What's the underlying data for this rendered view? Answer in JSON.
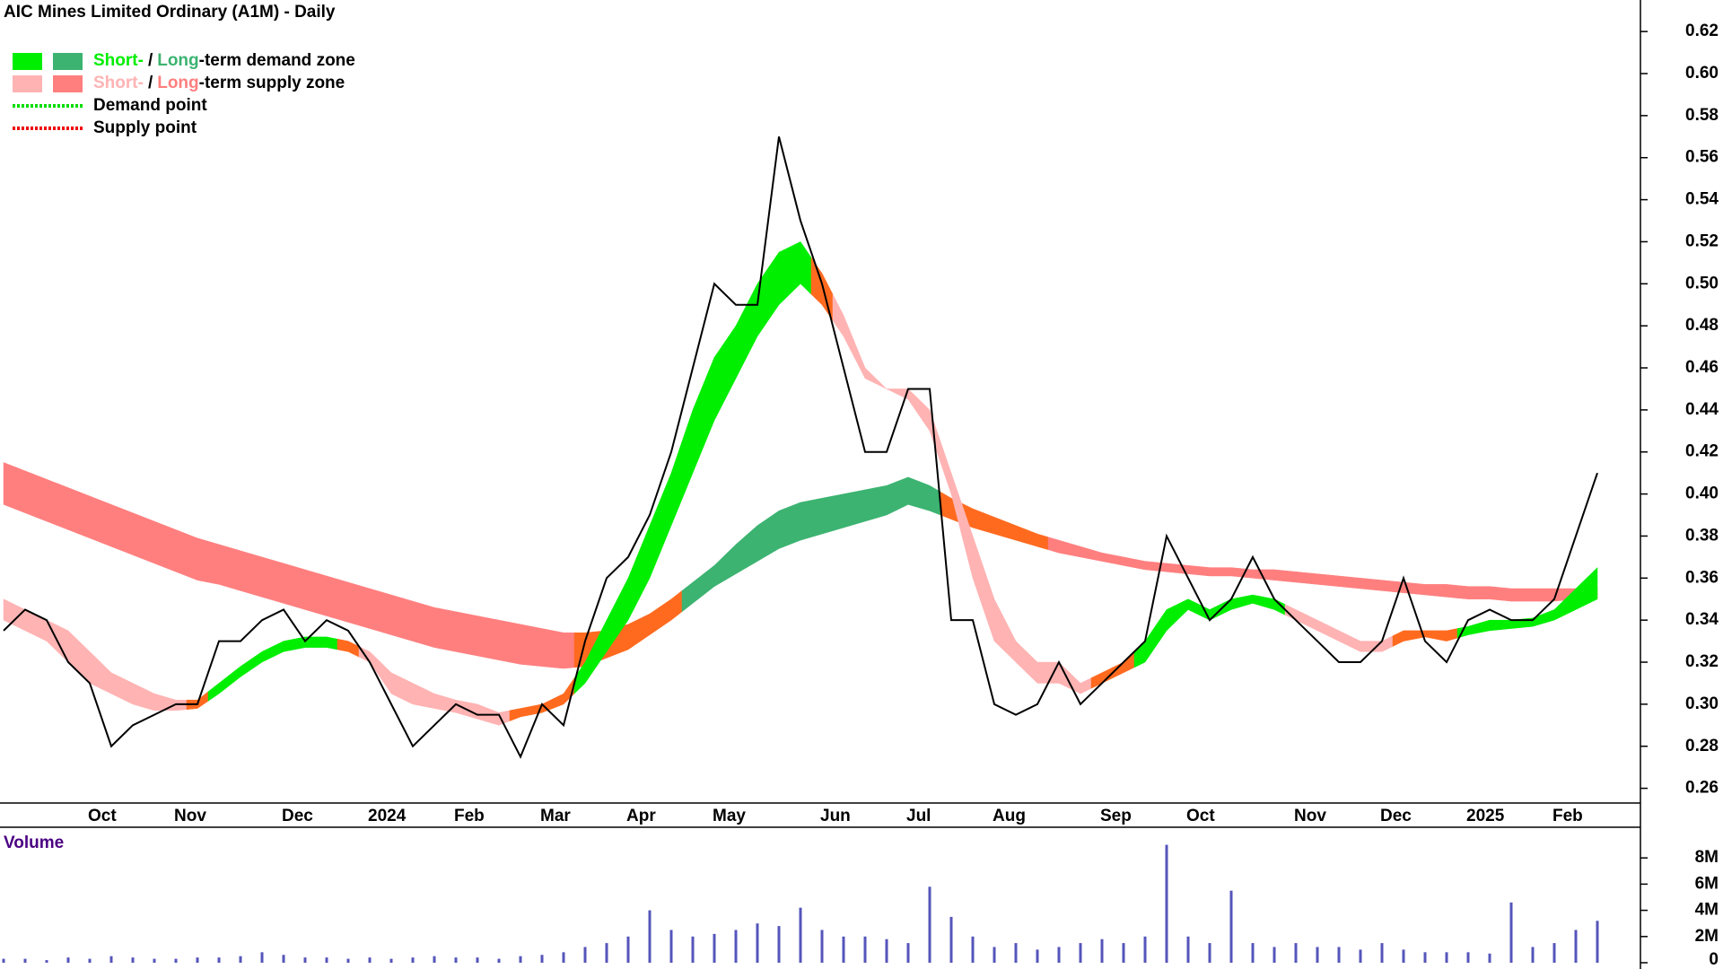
{
  "chart_data": {
    "type": "stock-zones",
    "title": "AIC Mines Limited Ordinary (A1M) - Daily",
    "legend": [
      {
        "swatches": [
          "#00ee00",
          "#3cb371"
        ],
        "parts": [
          {
            "text": "Short-",
            "color": "#00ee00"
          },
          {
            "text": "/",
            "color": "#000000"
          },
          {
            "text": "Long",
            "color": "#3cb371"
          },
          {
            "text": "-term demand zone",
            "color": "#000000"
          }
        ]
      },
      {
        "swatches": [
          "#ffb3b3",
          "#ff7f7f"
        ],
        "parts": [
          {
            "text": "Short-",
            "color": "#ffb3b3"
          },
          {
            "text": "/",
            "color": "#000000"
          },
          {
            "text": "Long",
            "color": "#ff7f7f"
          },
          {
            "text": "-term supply zone",
            "color": "#000000"
          }
        ]
      },
      {
        "line": "#00dd00",
        "parts": [
          {
            "text": "Demand point",
            "color": "#000000"
          }
        ]
      },
      {
        "line": "#ee0000",
        "parts": [
          {
            "text": "Supply point",
            "color": "#000000"
          }
        ]
      }
    ],
    "categories": [
      null,
      null,
      null,
      null,
      "Oct",
      null,
      null,
      null,
      "Nov",
      null,
      null,
      null,
      null,
      "Dec",
      null,
      null,
      null,
      "2024",
      null,
      null,
      null,
      "Feb",
      null,
      null,
      null,
      "Mar",
      null,
      null,
      null,
      "Apr",
      null,
      null,
      null,
      "May",
      null,
      null,
      null,
      null,
      "Jun",
      null,
      null,
      null,
      "Jul",
      null,
      null,
      null,
      "Aug",
      null,
      null,
      null,
      null,
      "Sep",
      null,
      null,
      null,
      "Oct",
      null,
      null,
      null,
      null,
      "Nov",
      null,
      null,
      null,
      "Dec",
      null,
      null,
      null,
      "2025",
      null,
      null,
      null,
      "Feb",
      null,
      null
    ],
    "series": [
      {
        "color": "#000000",
        "values": [
          0.335,
          0.345,
          0.34,
          0.32,
          0.31,
          0.28,
          0.29,
          0.295,
          0.3,
          0.3,
          0.33,
          0.33,
          0.34,
          0.345,
          0.33,
          0.34,
          0.335,
          0.32,
          0.3,
          0.28,
          0.29,
          0.3,
          0.295,
          0.295,
          0.275,
          0.3,
          0.29,
          0.33,
          0.36,
          0.37,
          0.39,
          0.42,
          0.46,
          0.5,
          0.49,
          0.49,
          0.57,
          0.53,
          0.5,
          0.46,
          0.42,
          0.42,
          0.45,
          0.45,
          0.34,
          0.34,
          0.3,
          0.295,
          0.3,
          0.32,
          0.3,
          0.31,
          0.32,
          0.33,
          0.38,
          0.36,
          0.34,
          0.35,
          0.37,
          0.35,
          0.34,
          0.33,
          0.32,
          0.32,
          0.33,
          0.36,
          0.33,
          0.32,
          0.34,
          0.345,
          0.34,
          0.34,
          0.35,
          0.38,
          0.41
        ]
      }
    ],
    "zones": [
      {
        "upper": [
          0.415,
          0.411,
          0.407,
          0.403,
          0.399,
          0.395,
          0.391,
          0.387,
          0.383,
          0.379,
          0.376,
          0.373,
          0.37,
          0.367,
          0.364,
          0.361,
          0.358,
          0.355,
          0.352,
          0.349,
          0.346,
          0.344,
          0.342,
          0.34,
          0.338,
          0.336,
          0.334,
          0.334,
          0.335,
          0.338,
          0.343,
          0.35,
          0.358,
          0.366,
          0.376,
          0.385,
          0.392,
          0.396,
          0.398,
          0.4,
          0.402,
          0.404,
          0.408,
          0.404,
          0.398,
          0.393,
          0.389,
          0.385,
          0.381,
          0.378,
          0.375,
          0.372,
          0.37,
          0.368,
          0.367,
          0.366,
          0.365,
          0.365,
          0.364,
          0.364,
          0.363,
          0.362,
          0.361,
          0.36,
          0.359,
          0.358,
          0.357,
          0.357,
          0.356,
          0.356,
          0.355,
          0.355,
          0.355,
          0.355,
          0.356
        ],
        "lower": [
          0.395,
          0.391,
          0.387,
          0.383,
          0.379,
          0.375,
          0.371,
          0.367,
          0.363,
          0.359,
          0.357,
          0.354,
          0.351,
          0.348,
          0.345,
          0.342,
          0.339,
          0.336,
          0.333,
          0.33,
          0.327,
          0.325,
          0.323,
          0.321,
          0.319,
          0.318,
          0.317,
          0.318,
          0.322,
          0.326,
          0.333,
          0.34,
          0.348,
          0.356,
          0.362,
          0.368,
          0.374,
          0.378,
          0.381,
          0.384,
          0.387,
          0.39,
          0.395,
          0.392,
          0.388,
          0.384,
          0.381,
          0.378,
          0.375,
          0.372,
          0.37,
          0.368,
          0.366,
          0.364,
          0.363,
          0.362,
          0.361,
          0.361,
          0.36,
          0.359,
          0.358,
          0.357,
          0.356,
          0.355,
          0.354,
          0.353,
          0.352,
          0.351,
          0.35,
          0.35,
          0.349,
          0.349,
          0.349,
          0.35,
          0.35
        ],
        "colors": [
          "#ff7f7f",
          "#ff7f7f",
          "#ff7f7f",
          "#ff7f7f",
          "#ff7f7f",
          "#ff7f7f",
          "#ff7f7f",
          "#ff7f7f",
          "#ff7f7f",
          "#ff7f7f",
          "#ff7f7f",
          "#ff7f7f",
          "#ff7f7f",
          "#ff7f7f",
          "#ff7f7f",
          "#ff7f7f",
          "#ff7f7f",
          "#ff7f7f",
          "#ff7f7f",
          "#ff7f7f",
          "#ff7f7f",
          "#ff7f7f",
          "#ff7f7f",
          "#ff7f7f",
          "#ff7f7f",
          "#ff7f7f",
          "#ff7f7f",
          "#ff6a1f",
          "#ff6a1f",
          "#ff6a1f",
          "#ff6a1f",
          "#ff6a1f",
          "#3cb371",
          "#3cb371",
          "#3cb371",
          "#3cb371",
          "#3cb371",
          "#3cb371",
          "#3cb371",
          "#3cb371",
          "#3cb371",
          "#3cb371",
          "#3cb371",
          "#3cb371",
          "#ff6a1f",
          "#ff6a1f",
          "#ff6a1f",
          "#ff6a1f",
          "#ff6a1f",
          "#ff7f7f",
          "#ff7f7f",
          "#ff7f7f",
          "#ff7f7f",
          "#ff7f7f",
          "#ff7f7f",
          "#ff7f7f",
          "#ff7f7f",
          "#ff7f7f",
          "#ff7f7f",
          "#ff7f7f",
          "#ff7f7f",
          "#ff7f7f",
          "#ff7f7f",
          "#ff7f7f",
          "#ff7f7f",
          "#ff7f7f",
          "#ff7f7f",
          "#ff7f7f",
          "#ff7f7f",
          "#ff7f7f",
          "#ff7f7f",
          "#ff7f7f",
          "#ff7f7f",
          "#ff7f7f",
          "#ff7f7f"
        ]
      },
      {
        "upper": [
          0.35,
          0.345,
          0.34,
          0.335,
          0.325,
          0.315,
          0.31,
          0.305,
          0.302,
          0.302,
          0.31,
          0.318,
          0.325,
          0.33,
          0.332,
          0.332,
          0.33,
          0.325,
          0.315,
          0.31,
          0.305,
          0.302,
          0.3,
          0.296,
          0.298,
          0.3,
          0.305,
          0.32,
          0.34,
          0.36,
          0.385,
          0.41,
          0.44,
          0.465,
          0.48,
          0.5,
          0.515,
          0.52,
          0.505,
          0.485,
          0.46,
          0.45,
          0.45,
          0.44,
          0.41,
          0.38,
          0.35,
          0.33,
          0.32,
          0.32,
          0.31,
          0.315,
          0.32,
          0.33,
          0.345,
          0.35,
          0.345,
          0.35,
          0.352,
          0.35,
          0.345,
          0.34,
          0.335,
          0.33,
          0.33,
          0.335,
          0.335,
          0.335,
          0.337,
          0.34,
          0.34,
          0.341,
          0.345,
          0.355,
          0.365
        ],
        "lower": [
          0.34,
          0.335,
          0.33,
          0.32,
          0.31,
          0.305,
          0.3,
          0.297,
          0.297,
          0.298,
          0.305,
          0.313,
          0.32,
          0.325,
          0.327,
          0.327,
          0.325,
          0.32,
          0.305,
          0.3,
          0.298,
          0.296,
          0.293,
          0.29,
          0.294,
          0.296,
          0.3,
          0.31,
          0.325,
          0.34,
          0.36,
          0.385,
          0.41,
          0.435,
          0.455,
          0.475,
          0.49,
          0.5,
          0.49,
          0.475,
          0.455,
          0.45,
          0.445,
          0.43,
          0.4,
          0.36,
          0.33,
          0.32,
          0.31,
          0.31,
          0.305,
          0.31,
          0.315,
          0.32,
          0.335,
          0.345,
          0.34,
          0.345,
          0.348,
          0.345,
          0.34,
          0.335,
          0.33,
          0.325,
          0.325,
          0.33,
          0.332,
          0.33,
          0.333,
          0.335,
          0.336,
          0.337,
          0.34,
          0.345,
          0.35
        ],
        "colors": [
          "#ffb3b3",
          "#ffb3b3",
          "#ffb3b3",
          "#ffb3b3",
          "#ffb3b3",
          "#ffb3b3",
          "#ffb3b3",
          "#ffb3b3",
          "#ffb3b3",
          "#ff6a1f",
          "#00ee00",
          "#00ee00",
          "#00ee00",
          "#00ee00",
          "#00ee00",
          "#00ee00",
          "#ff6a1f",
          "#ffb3b3",
          "#ffb3b3",
          "#ffb3b3",
          "#ffb3b3",
          "#ffb3b3",
          "#ffb3b3",
          "#ffb3b3",
          "#ff6a1f",
          "#ff6a1f",
          "#ff6a1f",
          "#00ee00",
          "#00ee00",
          "#00ee00",
          "#00ee00",
          "#00ee00",
          "#00ee00",
          "#00ee00",
          "#00ee00",
          "#00ee00",
          "#00ee00",
          "#00ee00",
          "#ff6a1f",
          "#ffb3b3",
          "#ffb3b3",
          "#ffb3b3",
          "#ffb3b3",
          "#ffb3b3",
          "#ffb3b3",
          "#ffb3b3",
          "#ffb3b3",
          "#ffb3b3",
          "#ffb3b3",
          "#ffb3b3",
          "#ffb3b3",
          "#ff6a1f",
          "#ff6a1f",
          "#00ee00",
          "#00ee00",
          "#00ee00",
          "#00ee00",
          "#00ee00",
          "#00ee00",
          "#00ee00",
          "#ffb3b3",
          "#ffb3b3",
          "#ffb3b3",
          "#ffb3b3",
          "#ffb3b3",
          "#ff6a1f",
          "#ff6a1f",
          "#ff6a1f",
          "#00ee00",
          "#00ee00",
          "#00ee00",
          "#00ee00",
          "#00ee00",
          "#00ee00",
          "#00ee00"
        ]
      }
    ],
    "ylim": [
      0.253,
      0.635
    ],
    "yticks": [
      0.26,
      0.28,
      {
        "value": 0.3,
        "label": "0.30"
      },
      0.32,
      0.34,
      0.36,
      0.38,
      {
        "value": 0.4,
        "label": "0.40"
      },
      0.42,
      0.44,
      0.46,
      0.48,
      {
        "value": 0.5,
        "label": "0.50"
      },
      0.52,
      0.54,
      0.56,
      0.58,
      {
        "value": 0.6,
        "label": "0.60"
      },
      0.62
    ],
    "volume": {
      "title": "Volume",
      "color": "#5555bb",
      "values": [
        300000,
        300000,
        200000,
        400000,
        300000,
        500000,
        400000,
        300000,
        300000,
        400000,
        400000,
        500000,
        800000,
        600000,
        400000,
        400000,
        300000,
        400000,
        300000,
        400000,
        500000,
        400000,
        400000,
        300000,
        500000,
        600000,
        800000,
        1200000,
        1500000,
        2000000,
        4000000,
        2500000,
        2000000,
        2200000,
        2500000,
        3000000,
        2800000,
        4200000,
        2500000,
        2000000,
        2000000,
        1800000,
        1500000,
        5800000,
        3500000,
        2000000,
        1200000,
        1500000,
        1000000,
        1200000,
        1500000,
        1800000,
        1500000,
        2000000,
        9000000,
        2000000,
        1500000,
        5500000,
        1500000,
        1200000,
        1500000,
        1200000,
        1200000,
        1000000,
        1500000,
        1000000,
        800000,
        800000,
        800000,
        700000,
        4600000,
        1200000,
        1500000,
        2500000,
        3200000
      ],
      "ylim": [
        0,
        10000000
      ],
      "yticks": [
        0,
        {
          "value": 2000000,
          "label": "2M"
        },
        {
          "value": 4000000,
          "label": "4M"
        },
        {
          "value": 6000000,
          "label": "6M"
        },
        {
          "value": 8000000,
          "label": "8M"
        }
      ]
    }
  }
}
